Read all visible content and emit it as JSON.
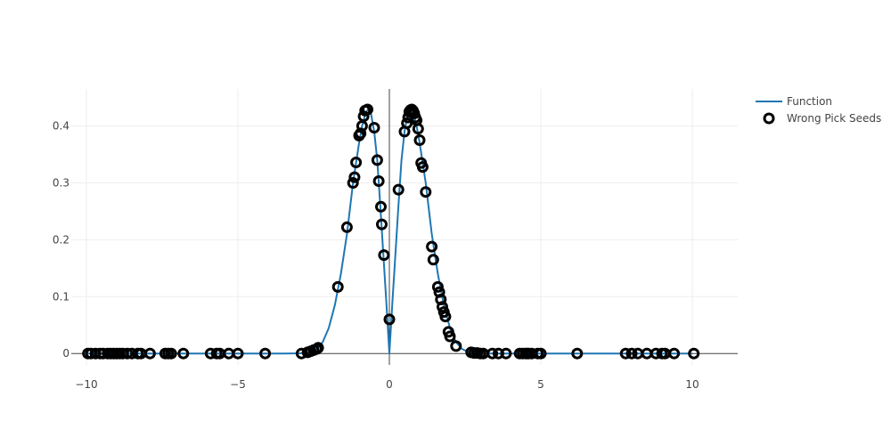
{
  "chart_data": {
    "type": "scatter",
    "title": "",
    "xlabel": "",
    "ylabel": "",
    "xlim": [
      -10.5,
      11.5
    ],
    "ylim": [
      -0.02,
      0.465
    ],
    "x_ticks": [
      -10,
      -5,
      0,
      5,
      10
    ],
    "x_tick_labels": [
      "−10",
      "−5",
      "0",
      "5",
      "10"
    ],
    "y_ticks": [
      0,
      0.1,
      0.2,
      0.3,
      0.4
    ],
    "y_tick_labels": [
      "0",
      "0.1",
      "0.2",
      "0.3",
      "0.4"
    ],
    "grid": true,
    "legend_position": "top-right",
    "series": [
      {
        "name": "Function",
        "kind": "line",
        "color": "#1f77b4",
        "function": "abs(x)*exp(-x^2)*... (smooth curve, peak ~0.43 at |x|≈0.7)",
        "x": [
          -10.0,
          -4.0,
          -3.5,
          -3.0,
          -2.8,
          -2.6,
          -2.4,
          -2.2,
          -2.0,
          -1.8,
          -1.6,
          -1.4,
          -1.2,
          -1.0,
          -0.9,
          -0.8,
          -0.7,
          -0.6,
          -0.5,
          -0.4,
          -0.3,
          -0.2,
          -0.1,
          0.0,
          0.1,
          0.2,
          0.3,
          0.4,
          0.5,
          0.6,
          0.7,
          0.8,
          0.9,
          1.0,
          1.2,
          1.4,
          1.6,
          1.8,
          2.0,
          2.2,
          2.4,
          2.6,
          2.8,
          3.0,
          3.5,
          4.0,
          10.0
        ],
        "y": [
          0,
          0,
          0.0001,
          0.0004,
          0.001,
          0.003,
          0.008,
          0.02,
          0.045,
          0.085,
          0.14,
          0.21,
          0.3,
          0.37,
          0.4,
          0.42,
          0.43,
          0.42,
          0.39,
          0.34,
          0.26,
          0.175,
          0.09,
          0.0,
          0.09,
          0.175,
          0.26,
          0.34,
          0.39,
          0.42,
          0.43,
          0.42,
          0.4,
          0.37,
          0.3,
          0.21,
          0.14,
          0.085,
          0.045,
          0.02,
          0.008,
          0.003,
          0.001,
          0.0004,
          0.0001,
          0,
          0
        ]
      },
      {
        "name": "Wrong Pick Seeds",
        "kind": "markers",
        "marker": "open-circle",
        "color": "#000000",
        "x": [
          -9.95,
          -9.85,
          -9.7,
          -9.55,
          -9.45,
          -9.3,
          -9.2,
          -9.1,
          -9.0,
          -8.9,
          -8.8,
          -8.65,
          -8.5,
          -8.3,
          -8.2,
          -7.9,
          -7.4,
          -7.3,
          -7.2,
          -6.8,
          -5.9,
          -5.7,
          -5.6,
          -5.3,
          -5.0,
          -4.1,
          -2.9,
          -2.7,
          -2.6,
          -2.5,
          -2.4,
          -2.35,
          -1.7,
          -1.4,
          -1.2,
          -1.15,
          -1.1,
          -1.0,
          -0.95,
          -0.9,
          -0.85,
          -0.8,
          -0.72,
          -0.5,
          -0.4,
          -0.35,
          -0.28,
          -0.25,
          -0.18,
          0.0,
          0.3,
          0.5,
          0.58,
          0.62,
          0.66,
          0.7,
          0.74,
          0.78,
          0.82,
          0.86,
          0.9,
          0.95,
          1.0,
          1.05,
          1.1,
          1.2,
          1.4,
          1.45,
          1.6,
          1.65,
          1.7,
          1.75,
          1.8,
          1.85,
          1.95,
          2.0,
          2.2,
          2.7,
          2.8,
          2.9,
          3.0,
          3.1,
          3.4,
          3.6,
          3.85,
          4.3,
          4.4,
          4.5,
          4.55,
          4.6,
          4.7,
          4.9,
          5.0,
          6.2,
          7.8,
          8.0,
          8.2,
          8.5,
          8.8,
          9.0,
          9.1,
          9.4,
          10.05
        ],
        "y": [
          0,
          0,
          0,
          0,
          0,
          0,
          0,
          0,
          0,
          0,
          0,
          0,
          0,
          0,
          0,
          0,
          0,
          0,
          0,
          0,
          0,
          0,
          0,
          0,
          0,
          0,
          0,
          0.002,
          0.004,
          0.006,
          0.008,
          0.01,
          0.117,
          0.222,
          0.3,
          0.31,
          0.336,
          0.383,
          0.387,
          0.4,
          0.417,
          0.427,
          0.429,
          0.397,
          0.34,
          0.303,
          0.258,
          0.227,
          0.173,
          0.06,
          0.288,
          0.39,
          0.405,
          0.415,
          0.425,
          0.428,
          0.429,
          0.427,
          0.422,
          0.415,
          0.41,
          0.395,
          0.375,
          0.335,
          0.328,
          0.284,
          0.188,
          0.165,
          0.117,
          0.108,
          0.095,
          0.082,
          0.073,
          0.065,
          0.038,
          0.03,
          0.013,
          0.002,
          0.001,
          0.001,
          0,
          0,
          0,
          0,
          0,
          0,
          0,
          0,
          0,
          0,
          0,
          0,
          0,
          0,
          0,
          0,
          0,
          0,
          0,
          0,
          0,
          0,
          0
        ]
      }
    ]
  }
}
